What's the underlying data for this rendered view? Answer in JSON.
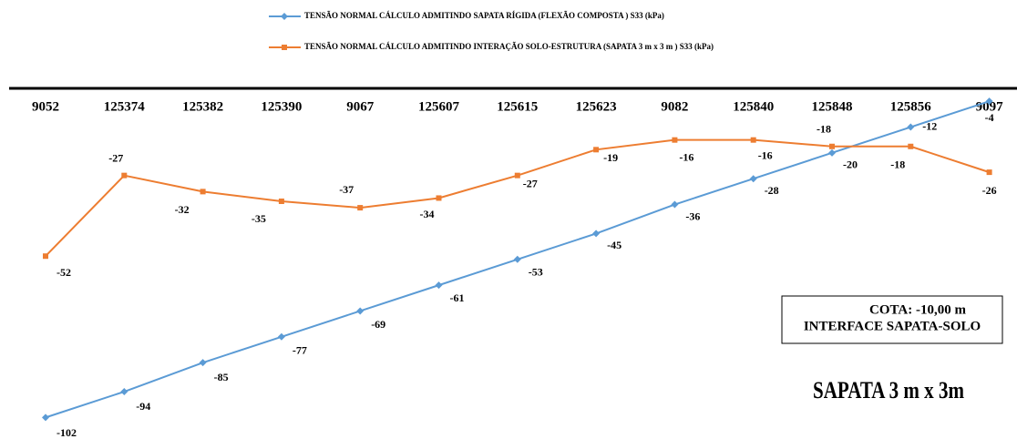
{
  "chart_data": {
    "type": "line",
    "categories": [
      "9052",
      "125374",
      "125382",
      "125390",
      "9067",
      "125607",
      "125615",
      "125623",
      "9082",
      "125840",
      "125848",
      "125856",
      "9097"
    ],
    "series": [
      {
        "name": "TENSÃO NORMAL CÁLCULO ADMITINDO SAPATA RÍGIDA (FLEXÃO COMPOSTA ) S33 (kPa)",
        "color": "#5b9bd5",
        "marker": "diamond",
        "values": [
          -102,
          -94,
          -85,
          -77,
          -69,
          -61,
          -53,
          -45,
          -36,
          -28,
          -20,
          -12,
          -4
        ]
      },
      {
        "name": "TENSÃO NORMAL CÁLCULO ADMITINDO INTERAÇÃO SOLO-ESTRUTURA (SAPATA 3 m x 3 m ) S33 (kPa)",
        "color": "#ed7d31",
        "marker": "square",
        "values": [
          -52,
          -27,
          -32,
          -35,
          -37,
          -34,
          -27,
          -19,
          -16,
          -16,
          -18,
          -18,
          -26
        ]
      }
    ],
    "ylim": [
      -105,
      0
    ],
    "yticks": [],
    "legend": "top",
    "annotations": [
      "COTA: -10,00 m",
      "INTERFACE SAPATA-SOLO",
      "SAPATA 3 m x 3m"
    ]
  }
}
